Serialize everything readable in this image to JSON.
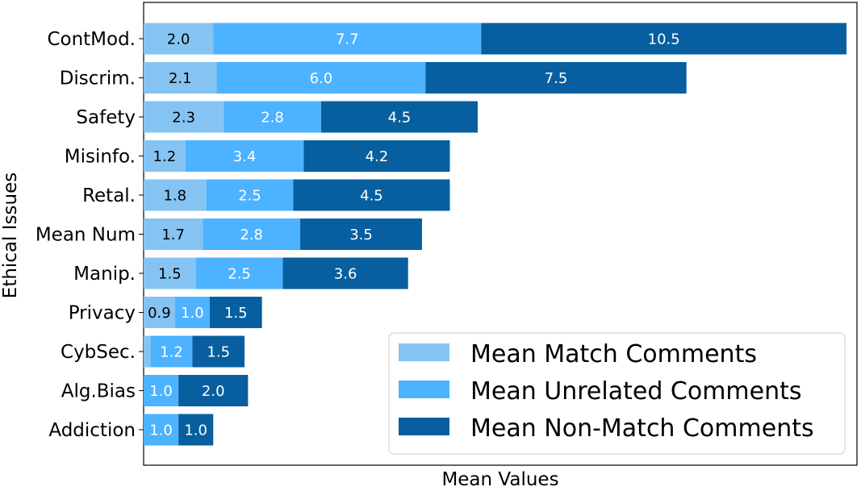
{
  "chart_data": {
    "type": "bar",
    "orientation": "horizontal",
    "stacked": true,
    "xlabel": "Mean Values",
    "ylabel": "Ethical Issues",
    "xlim": [
      0,
      20.5
    ],
    "grid": false,
    "legend_position": "bottom-right",
    "categories": [
      "ContMod.",
      "Discrim.",
      "Safety",
      "Misinfo.",
      "Retal.",
      "Mean Num",
      "Manip.",
      "Privacy",
      "CybSec.",
      "Alg.Bias",
      "Addiction"
    ],
    "series": [
      {
        "name": "Mean Match Comments",
        "color": "#85c4f2",
        "label_color": "#000000",
        "values": [
          2.0,
          2.1,
          2.3,
          1.2,
          1.8,
          1.7,
          1.5,
          0.9,
          0.2,
          0.0,
          0.0
        ],
        "labels": [
          "2.0",
          "2.1",
          "2.3",
          "1.2",
          "1.8",
          "1.7",
          "1.5",
          "0.9",
          "",
          "",
          ""
        ]
      },
      {
        "name": "Mean Unrelated Comments",
        "color": "#4db2ff",
        "label_color": "#ffffff",
        "values": [
          7.7,
          6.0,
          2.8,
          3.4,
          2.5,
          2.8,
          2.5,
          1.0,
          1.2,
          1.0,
          1.0
        ],
        "labels": [
          "7.7",
          "6.0",
          "2.8",
          "3.4",
          "2.5",
          "2.8",
          "2.5",
          "1.0",
          "1.2",
          "1.0",
          "1.0"
        ]
      },
      {
        "name": "Mean Non-Match Comments",
        "color": "#075f9f",
        "label_color": "#ffffff",
        "values": [
          10.5,
          7.5,
          4.5,
          4.2,
          4.5,
          3.5,
          3.6,
          1.5,
          1.5,
          2.0,
          1.0
        ],
        "labels": [
          "10.5",
          "7.5",
          "4.5",
          "4.2",
          "4.5",
          "3.5",
          "3.6",
          "1.5",
          "1.5",
          "2.0",
          "1.0"
        ]
      }
    ]
  }
}
